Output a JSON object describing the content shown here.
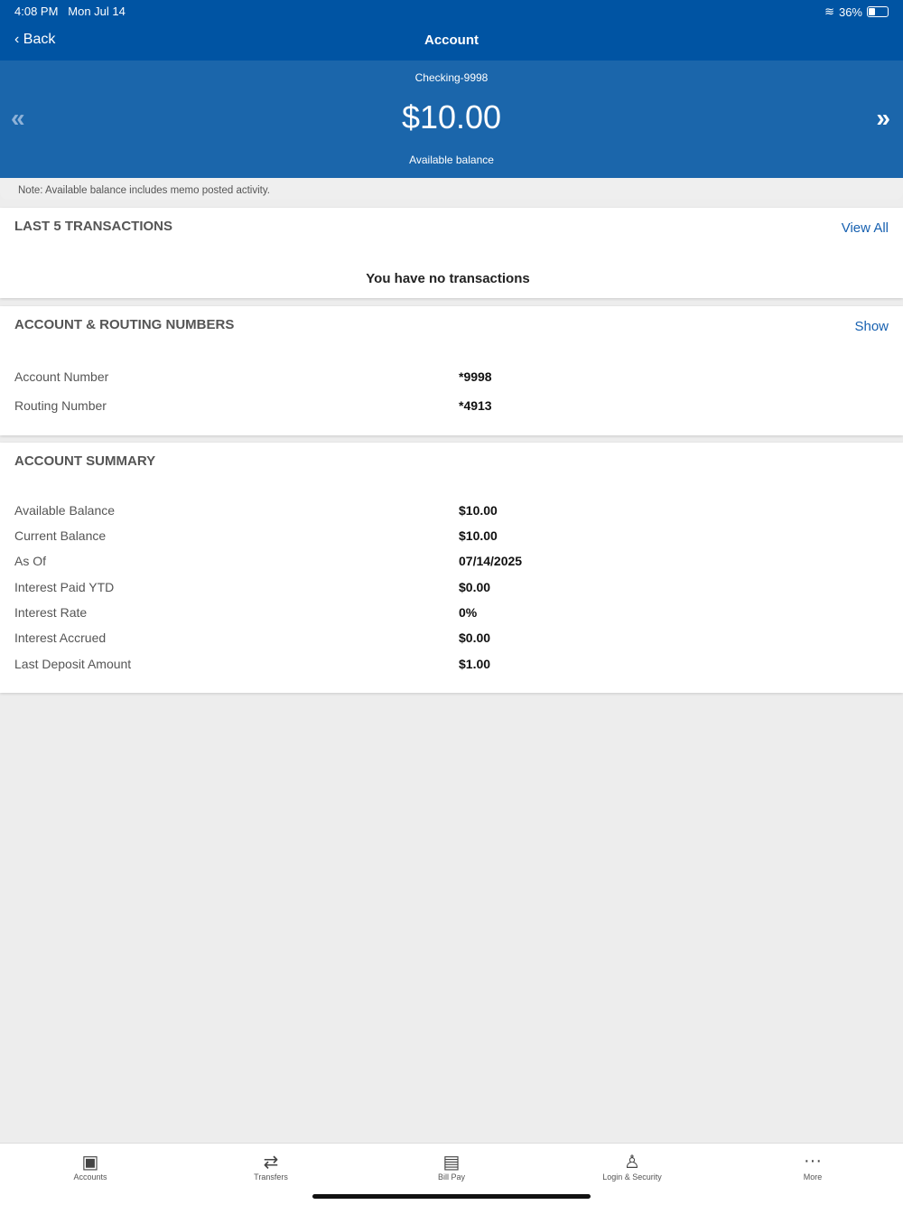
{
  "status": {
    "time": "4:08 PM",
    "date": "Mon Jul 14",
    "battery": "36%"
  },
  "nav": {
    "back": "Back",
    "title": "Account"
  },
  "hero": {
    "account": "Checking-9998",
    "balance": "$10.00",
    "balance_label": "Available balance",
    "prev": "«",
    "next": "»"
  },
  "note": "Note: Available balance includes memo posted activity.",
  "transactions": {
    "heading": "LAST 5 TRANSACTIONS",
    "link": "View All",
    "empty": "You have no transactions"
  },
  "routing": {
    "heading": "ACCOUNT & ROUTING NUMBERS",
    "link": "Show",
    "rows": [
      {
        "label": "Account Number",
        "value": "*9998"
      },
      {
        "label": "Routing Number",
        "value": "*4913"
      }
    ]
  },
  "summary": {
    "heading": "ACCOUNT SUMMARY",
    "rows": [
      {
        "label": "Available Balance",
        "value": "$10.00"
      },
      {
        "label": "Current Balance",
        "value": "$10.00"
      },
      {
        "label": "As Of",
        "value": "07/14/2025"
      },
      {
        "label": "Interest Paid YTD",
        "value": "$0.00"
      },
      {
        "label": "Interest Rate",
        "value": "0%"
      },
      {
        "label": "Interest Accrued",
        "value": "$0.00"
      },
      {
        "label": "Last Deposit Amount",
        "value": "$1.00"
      }
    ]
  },
  "tabs": [
    {
      "label": "Accounts",
      "icon": "accounts-icon"
    },
    {
      "label": "Transfers",
      "icon": "transfers-icon"
    },
    {
      "label": "Bill Pay",
      "icon": "bill-pay-icon"
    },
    {
      "label": "Login & Security",
      "icon": "user-icon"
    },
    {
      "label": "More",
      "icon": "more-icon"
    }
  ]
}
